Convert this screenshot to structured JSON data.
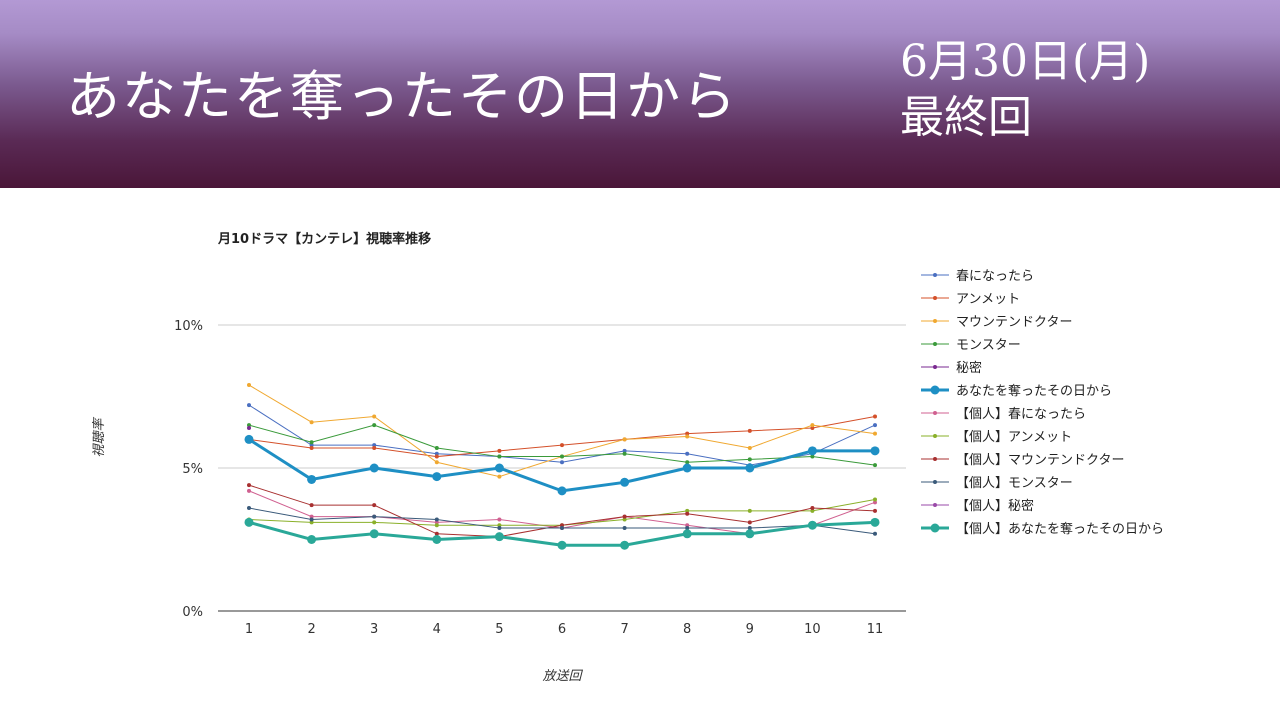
{
  "banner": {
    "title": "あなたを奪ったその日から",
    "date": "6月30日(月)",
    "episode": "最終回"
  },
  "chart_data": {
    "type": "line",
    "title": "月10ドラマ【カンテレ】視聴率推移",
    "xlabel": "放送回",
    "ylabel": "視聴率",
    "x": [
      1,
      2,
      3,
      4,
      5,
      6,
      7,
      8,
      9,
      10,
      11
    ],
    "yticks": [
      "0%",
      "5%",
      "10%"
    ],
    "ylim": [
      0,
      10
    ],
    "grid": true,
    "legend_position": "right",
    "series": [
      {
        "name": "春になったら",
        "color": "#4a6fc1",
        "highlight": false,
        "values": [
          7.2,
          5.8,
          5.8,
          5.5,
          5.4,
          5.2,
          5.6,
          5.5,
          5.1,
          5.5,
          6.5
        ]
      },
      {
        "name": "アンメット",
        "color": "#d4502a",
        "highlight": false,
        "values": [
          6.0,
          5.7,
          5.7,
          5.4,
          5.6,
          5.8,
          6.0,
          6.2,
          6.3,
          6.4,
          6.8
        ]
      },
      {
        "name": "マウンテンドクター",
        "color": "#f0a830",
        "highlight": false,
        "values": [
          7.9,
          6.6,
          6.8,
          5.2,
          4.7,
          5.4,
          6.0,
          6.1,
          5.7,
          6.5,
          6.2
        ]
      },
      {
        "name": "モンスター",
        "color": "#3a9a3a",
        "highlight": false,
        "values": [
          6.5,
          5.9,
          6.5,
          5.7,
          5.4,
          5.4,
          5.5,
          5.2,
          5.3,
          5.4,
          5.1
        ]
      },
      {
        "name": "秘密",
        "color": "#7a2a90",
        "highlight": false,
        "values": [
          6.4,
          null,
          null,
          null,
          null,
          null,
          null,
          null,
          null,
          null,
          null
        ]
      },
      {
        "name": "あなたを奪ったその日から",
        "color": "#1e8fc4",
        "highlight": true,
        "values": [
          6.0,
          4.6,
          5.0,
          4.7,
          5.0,
          4.2,
          4.5,
          5.0,
          5.0,
          5.6,
          5.6
        ]
      },
      {
        "name": "【個人】春になったら",
        "color": "#d06090",
        "highlight": false,
        "values": [
          4.2,
          3.3,
          3.3,
          3.1,
          3.2,
          2.9,
          3.3,
          3.0,
          2.7,
          3.0,
          3.8
        ]
      },
      {
        "name": "【個人】アンメット",
        "color": "#8ab02a",
        "highlight": false,
        "values": [
          3.2,
          3.1,
          3.1,
          3.0,
          3.0,
          3.0,
          3.2,
          3.5,
          3.5,
          3.5,
          3.9
        ]
      },
      {
        "name": "【個人】マウンテンドクター",
        "color": "#a83030",
        "highlight": false,
        "values": [
          4.4,
          3.7,
          3.7,
          2.7,
          2.6,
          3.0,
          3.3,
          3.4,
          3.1,
          3.6,
          3.5
        ]
      },
      {
        "name": "【個人】モンスター",
        "color": "#3a5a7a",
        "highlight": false,
        "values": [
          3.6,
          3.2,
          3.3,
          3.2,
          2.9,
          2.9,
          2.9,
          2.9,
          2.9,
          3.0,
          2.7
        ]
      },
      {
        "name": "【個人】秘密",
        "color": "#9a4aa8",
        "highlight": false,
        "values": [
          3.1,
          null,
          null,
          null,
          null,
          null,
          null,
          null,
          null,
          null,
          null
        ]
      },
      {
        "name": "【個人】あなたを奪ったその日から",
        "color": "#2aa898",
        "highlight": true,
        "values": [
          3.1,
          2.5,
          2.7,
          2.5,
          2.6,
          2.3,
          2.3,
          2.7,
          2.7,
          3.0,
          3.1
        ]
      }
    ]
  }
}
